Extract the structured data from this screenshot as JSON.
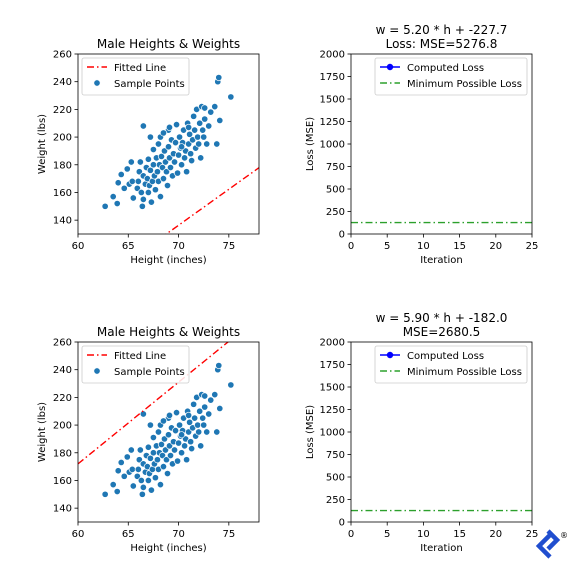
{
  "chart_data": [
    {
      "type": "scatter",
      "title": "Male Heights & Weights",
      "xlabel": "Height (inches)",
      "ylabel": "Weight (lbs)",
      "xlim": [
        60,
        78
      ],
      "ylim": [
        130,
        260
      ],
      "xticks": [
        60,
        65,
        70,
        75
      ],
      "yticks": [
        140,
        160,
        180,
        200,
        220,
        240,
        260
      ],
      "legend": [
        "Fitted Line",
        "Sample Points"
      ],
      "legend_position": "top-left",
      "fitted_line": {
        "slope": 5.2,
        "intercept": -227.7,
        "color": "#ff0000"
      },
      "points_color": "#1f77b4",
      "points": [
        [
          62.7,
          150
        ],
        [
          63.5,
          157
        ],
        [
          63.9,
          152
        ],
        [
          64,
          167
        ],
        [
          64.3,
          173
        ],
        [
          64.6,
          163
        ],
        [
          64.9,
          177
        ],
        [
          65.1,
          166
        ],
        [
          65.3,
          182
        ],
        [
          65.4,
          168
        ],
        [
          65.5,
          156
        ],
        [
          65.9,
          163
        ],
        [
          66,
          168
        ],
        [
          66.1,
          175
        ],
        [
          66.2,
          182
        ],
        [
          66.3,
          160
        ],
        [
          66.4,
          150
        ],
        [
          66.5,
          172
        ],
        [
          66.5,
          155
        ],
        [
          66.7,
          166
        ],
        [
          66.8,
          178
        ],
        [
          66.9,
          170
        ],
        [
          67,
          160
        ],
        [
          67,
          184
        ],
        [
          67.1,
          165
        ],
        [
          67.2,
          176
        ],
        [
          67.3,
          153
        ],
        [
          67.4,
          168
        ],
        [
          67.5,
          180
        ],
        [
          67.5,
          191
        ],
        [
          67.6,
          172
        ],
        [
          67.7,
          162
        ],
        [
          67.8,
          185
        ],
        [
          67.9,
          175
        ],
        [
          68,
          168
        ],
        [
          68,
          195
        ],
        [
          68.1,
          180
        ],
        [
          68.2,
          200
        ],
        [
          68.2,
          157
        ],
        [
          68.3,
          186
        ],
        [
          68.4,
          178
        ],
        [
          68.5,
          170
        ],
        [
          68.6,
          190
        ],
        [
          68.7,
          182
        ],
        [
          68.8,
          175
        ],
        [
          68.9,
          165
        ],
        [
          69,
          193
        ],
        [
          69,
          205
        ],
        [
          69.1,
          185
        ],
        [
          69.2,
          178
        ],
        [
          69.3,
          198
        ],
        [
          69.4,
          172
        ],
        [
          69.5,
          188
        ],
        [
          69.6,
          182
        ],
        [
          69.7,
          196
        ],
        [
          69.8,
          209
        ],
        [
          69.9,
          174
        ],
        [
          70,
          187
        ],
        [
          70.1,
          200
        ],
        [
          70.2,
          192
        ],
        [
          70.3,
          180
        ],
        [
          70.4,
          196
        ],
        [
          70.5,
          205
        ],
        [
          70.6,
          185
        ],
        [
          70.7,
          190
        ],
        [
          70.8,
          175
        ],
        [
          70.9,
          210
        ],
        [
          71,
          195
        ],
        [
          71.1,
          202
        ],
        [
          71.2,
          188
        ],
        [
          71.3,
          183
        ],
        [
          71.4,
          198
        ],
        [
          71.5,
          215
        ],
        [
          71.6,
          205
        ],
        [
          71.7,
          192
        ],
        [
          71.8,
          220
        ],
        [
          71.9,
          200
        ],
        [
          72,
          195
        ],
        [
          72.1,
          210
        ],
        [
          72.2,
          185
        ],
        [
          72.3,
          222
        ],
        [
          72.4,
          205
        ],
        [
          72.5,
          200
        ],
        [
          72.6,
          213
        ],
        [
          72.8,
          195
        ],
        [
          73,
          208
        ],
        [
          73.2,
          218
        ],
        [
          73.6,
          222
        ],
        [
          73.8,
          195
        ],
        [
          73.9,
          240
        ],
        [
          74,
          243
        ],
        [
          74.1,
          212
        ],
        [
          75.2,
          229
        ],
        [
          66.5,
          208
        ],
        [
          67.2,
          200
        ],
        [
          68.5,
          203
        ],
        [
          69.1,
          207
        ],
        [
          70.3,
          193
        ],
        [
          71.0,
          207
        ],
        [
          72.6,
          221
        ]
      ]
    },
    {
      "type": "line",
      "title": "w = 5.20 * h + -227.7",
      "subtitle": "Loss: MSE=5276.8",
      "xlabel": "Iteration",
      "ylabel": "Loss (MSE)",
      "xlim": [
        0,
        25
      ],
      "ylim": [
        0,
        2000
      ],
      "xticks": [
        0,
        5,
        10,
        15,
        20,
        25
      ],
      "yticks": [
        0,
        250,
        500,
        750,
        1000,
        1250,
        1500,
        1750,
        2000
      ],
      "legend": [
        "Computed Loss",
        "Minimum Possible Loss"
      ],
      "legend_position": "top-right",
      "series": [
        {
          "name": "Computed Loss",
          "x": [],
          "y": [],
          "color": "#0000ff"
        },
        {
          "name": "Minimum Possible Loss",
          "y_constant": 127,
          "color": "#2ca02c"
        }
      ]
    },
    {
      "type": "scatter",
      "title": "Male Heights & Weights",
      "xlabel": "Height (inches)",
      "ylabel": "Weight (lbs)",
      "xlim": [
        60,
        78
      ],
      "ylim": [
        130,
        260
      ],
      "xticks": [
        60,
        65,
        70,
        75
      ],
      "yticks": [
        140,
        160,
        180,
        200,
        220,
        240,
        260
      ],
      "legend": [
        "Fitted Line",
        "Sample Points"
      ],
      "legend_position": "top-left",
      "fitted_line": {
        "slope": 5.9,
        "intercept": -182.0,
        "color": "#ff0000"
      },
      "points_color": "#1f77b4",
      "points_same_as": 0
    },
    {
      "type": "line",
      "title": "w = 5.90 * h + -182.0",
      "subtitle": "MSE=2680.5",
      "xlabel": "Iteration",
      "ylabel": "Loss (MSE)",
      "xlim": [
        0,
        25
      ],
      "ylim": [
        0,
        2000
      ],
      "xticks": [
        0,
        5,
        10,
        15,
        20,
        25
      ],
      "yticks": [
        0,
        250,
        500,
        750,
        1000,
        1250,
        1500,
        1750,
        2000
      ],
      "legend": [
        "Computed Loss",
        "Minimum Possible Loss"
      ],
      "legend_position": "top-right",
      "series": [
        {
          "name": "Computed Loss",
          "x": [],
          "y": [],
          "color": "#0000ff"
        },
        {
          "name": "Minimum Possible Loss",
          "y_constant": 127,
          "color": "#2ca02c"
        }
      ]
    }
  ],
  "logo": {
    "name": "toptal-logo-icon",
    "color": "#204ecf",
    "mark": "®"
  }
}
